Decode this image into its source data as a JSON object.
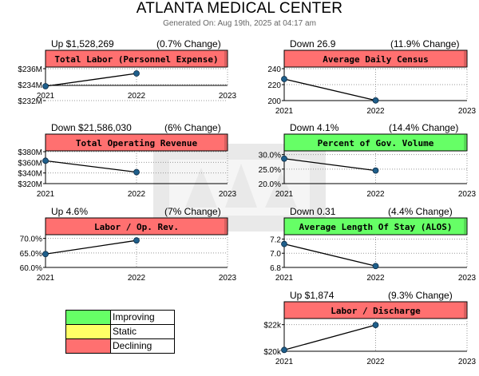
{
  "page": {
    "title": "ATLANTA MEDICAL CENTER",
    "generated": "Generated On: Aug 19th, 2025 at 04:17 am"
  },
  "colors": {
    "improving": "#66ff66",
    "static": "#ffff66",
    "declining": "#ff7070",
    "marker": "#1f5f8b"
  },
  "chart_data": [
    {
      "type": "line",
      "title": "Total Labor (Personnel Expense)",
      "status": "declining",
      "change": "Up $1,528,269",
      "pct_change": "(0.7% Change)",
      "x": [
        2021,
        2022
      ],
      "y": [
        233800000,
        235400000
      ],
      "ylim": [
        232000000,
        236000000
      ],
      "yticks": [
        232000000,
        234000000,
        236000000
      ],
      "ytick_labels": [
        "$232M",
        "$234M",
        "$236M"
      ],
      "xticks": [
        "2021",
        "2022",
        "2023"
      ]
    },
    {
      "type": "line",
      "title": "Average Daily Census",
      "status": "declining",
      "change": "Down 26.9",
      "pct_change": "(11.9% Change)",
      "x": [
        2021,
        2022
      ],
      "y": [
        227,
        200.2
      ],
      "ylim": [
        200,
        240
      ],
      "yticks": [
        200,
        220,
        240
      ],
      "ytick_labels": [
        "200",
        "220",
        "240"
      ],
      "xticks": [
        "2021",
        "2022",
        "2023"
      ]
    },
    {
      "type": "line",
      "title": "Total Operating Revenue",
      "status": "declining",
      "change": "Down $21,586,030",
      "pct_change": "(6% Change)",
      "x": [
        2021,
        2022
      ],
      "y": [
        363000000,
        341500000
      ],
      "ylim": [
        320000000,
        380000000
      ],
      "yticks": [
        320000000,
        340000000,
        360000000,
        380000000
      ],
      "ytick_labels": [
        "$320M",
        "$340M",
        "$360M",
        "$380M"
      ],
      "xticks": [
        "2021",
        "2022",
        "2023"
      ]
    },
    {
      "type": "line",
      "title": "Percent of Gov. Volume",
      "status": "improving",
      "change": "Down 4.1%",
      "pct_change": "(14.4% Change)",
      "x": [
        2021,
        2022
      ],
      "y": [
        28.6,
        24.5
      ],
      "ylim": [
        20,
        31
      ],
      "yticks": [
        20,
        25,
        30
      ],
      "ytick_labels": [
        "20.0%",
        "25.0%",
        "30.0%"
      ],
      "xticks": [
        "2021",
        "2022",
        "2023"
      ]
    },
    {
      "type": "line",
      "title": "Labor / Op. Rev.",
      "status": "declining",
      "change": "Up 4.6%",
      "pct_change": "(7% Change)",
      "x": [
        2021,
        2022
      ],
      "y": [
        64.6,
        69.3
      ],
      "ylim": [
        60,
        71
      ],
      "yticks": [
        60,
        65,
        70
      ],
      "ytick_labels": [
        "60.0%",
        "65.0%",
        "70.0%"
      ],
      "xticks": [
        "2021",
        "2022",
        "2023"
      ]
    },
    {
      "type": "line",
      "title": "Average Length Of Stay (ALOS)",
      "status": "improving",
      "change": "Down 0.31",
      "pct_change": "(4.4% Change)",
      "x": [
        2021,
        2022
      ],
      "y": [
        7.13,
        6.82
      ],
      "ylim": [
        6.8,
        7.25
      ],
      "yticks": [
        6.8,
        7.0,
        7.2
      ],
      "ytick_labels": [
        "6.8",
        "7.0",
        "7.2"
      ],
      "xticks": [
        "2021",
        "2022",
        "2023"
      ]
    },
    {
      "type": "line",
      "title": "Labor / Discharge",
      "status": "declining",
      "change": "Up $1,874",
      "pct_change": "(9.3% Change)",
      "x": [
        2021,
        2022
      ],
      "y": [
        20100,
        21974
      ],
      "ylim": [
        20000,
        22400
      ],
      "yticks": [
        20000,
        22000
      ],
      "ytick_labels": [
        "$20k",
        "$22k"
      ],
      "xticks": [
        "2021",
        "2022",
        "2023"
      ]
    }
  ],
  "legend": [
    {
      "label": "Improving",
      "color": "#66ff66"
    },
    {
      "label": "Static",
      "color": "#ffff66"
    },
    {
      "label": "Declining",
      "color": "#ff7070"
    }
  ]
}
